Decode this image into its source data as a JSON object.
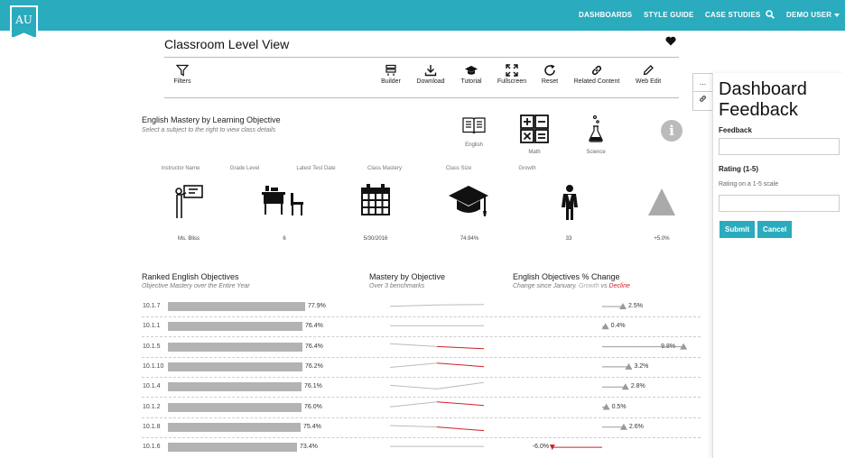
{
  "header": {
    "logo_text": "AU",
    "nav": [
      "DASHBOARDS",
      "STYLE GUIDE",
      "CASE STUDIES"
    ],
    "user_menu": "DEMO USER",
    "brand_color": "#2aabbe"
  },
  "page": {
    "title": "Classroom Level View"
  },
  "toolbar": {
    "filters": "Filters",
    "items": [
      "Builder",
      "Download",
      "Tutorial",
      "Fullscreen",
      "Reset",
      "Related Content",
      "Web Edit"
    ]
  },
  "mastery": {
    "title": "English Mastery by Learning Objective",
    "subtitle": "Select a subject to the right to view class details",
    "subjects": [
      "English",
      "Math",
      "Science"
    ]
  },
  "kpis": {
    "headers": [
      "Instructor Name",
      "Grade Level",
      "Latest Test Date",
      "Class Mastery",
      "Class Size",
      "Growth"
    ],
    "values": [
      "Ms. Bliss",
      "6",
      "5/30/2016",
      "74.94%",
      "33",
      "+5.0%"
    ]
  },
  "ranked": {
    "title": "Ranked English Objectives",
    "subtitle": "Objective Mastery over the Entire Year",
    "rows": [
      {
        "label": "10.1.7",
        "value": "77.9%"
      },
      {
        "label": "10.1.1",
        "value": "76.4%"
      },
      {
        "label": "10.1.5",
        "value": "76.4%"
      },
      {
        "label": "10.1.10",
        "value": "76.2%"
      },
      {
        "label": "10.1.4",
        "value": "76.1%"
      },
      {
        "label": "10.1.2",
        "value": "76.0%"
      },
      {
        "label": "10.1.8",
        "value": "75.4%"
      },
      {
        "label": "10.1.6",
        "value": "73.4%"
      }
    ]
  },
  "spark": {
    "title": "Mastery by Objective",
    "subtitle": "Over 3 benchmarks"
  },
  "change": {
    "title": "English Objectives % Change",
    "subtitle_prefix": "Change since January.",
    "growth_word": "Growth",
    "vs_word": "vs",
    "decline_word": "Decline",
    "values": [
      "2.5%",
      "0.4%",
      "9.8%",
      "3.2%",
      "2.8%",
      "0.5%",
      "2.6%",
      "-6.0%"
    ],
    "growth_color": "#aaaaaa",
    "decline_color": "#d0202a"
  },
  "feedback": {
    "title_line1": "Dashboard",
    "title_line2": "Feedback",
    "feedback_label": "Feedback",
    "rating_label": "Rating (1-5)",
    "rating_help": "Rating on a 1-5 scale",
    "submit": "Submit",
    "cancel": "Cancel",
    "side_tab_more": "...",
    "side_tab_link": "link-icon"
  },
  "chart_data": [
    {
      "type": "bar",
      "title": "Ranked English Objectives",
      "categories": [
        "10.1.7",
        "10.1.1",
        "10.1.5",
        "10.1.10",
        "10.1.4",
        "10.1.2",
        "10.1.8",
        "10.1.6"
      ],
      "values": [
        77.9,
        76.4,
        76.4,
        76.2,
        76.1,
        76.0,
        75.4,
        73.4
      ]
    },
    {
      "type": "bar",
      "title": "English Objectives % Change",
      "categories": [
        "10.1.7",
        "10.1.1",
        "10.1.5",
        "10.1.10",
        "10.1.4",
        "10.1.2",
        "10.1.8",
        "10.1.6"
      ],
      "values": [
        2.5,
        0.4,
        9.8,
        3.2,
        2.8,
        0.5,
        2.6,
        -6.0
      ]
    }
  ]
}
